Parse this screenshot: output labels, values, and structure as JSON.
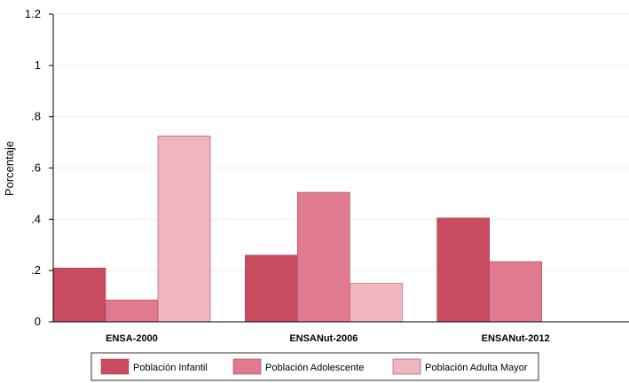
{
  "chart_data": {
    "type": "bar",
    "ylabel": "Porcentaje",
    "xlabel": "",
    "ylim": [
      0,
      1.2
    ],
    "yticks": [
      "0",
      ".2",
      ".4",
      ".6",
      ".8",
      "1",
      "1.2"
    ],
    "ytick_values": [
      0,
      0.2,
      0.4,
      0.6,
      0.8,
      1.0,
      1.2
    ],
    "grid": true,
    "legend_position": "bottom",
    "categories": [
      "ENSA-2000",
      "ENSANut-2006",
      "ENSANut-2012"
    ],
    "series": [
      {
        "name": "Población Infantil",
        "values": [
          0.21,
          0.26,
          0.405
        ],
        "color": "#c94c60"
      },
      {
        "name": "Población Adolescente",
        "values": [
          0.085,
          0.505,
          0.235
        ],
        "color": "#e07a8e"
      },
      {
        "name": "Población Adulta Mayor",
        "values": [
          0.725,
          0.15,
          null
        ],
        "color": "#f0b6c0"
      }
    ]
  }
}
